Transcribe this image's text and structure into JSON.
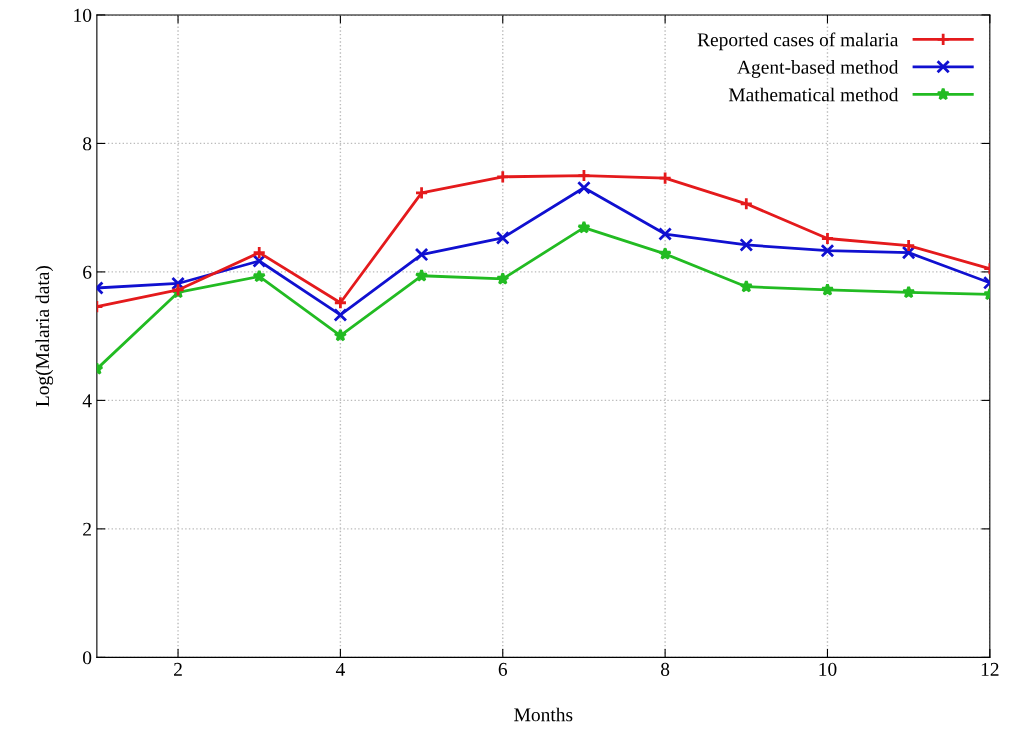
{
  "chart_data": {
    "type": "line",
    "xlabel": "Months",
    "ylabel": "Log(Malaria data)",
    "x": [
      1,
      2,
      3,
      4,
      5,
      6,
      7,
      8,
      9,
      10,
      11,
      12
    ],
    "series": [
      {
        "name": "Reported cases of malaria",
        "color": "#e41a1c",
        "marker": "plus",
        "values": [
          5.46,
          5.72,
          6.3,
          5.52,
          7.23,
          7.48,
          7.5,
          7.46,
          7.06,
          6.52,
          6.41,
          6.05
        ]
      },
      {
        "name": "Agent-based method",
        "color": "#1010d0",
        "marker": "cross",
        "values": [
          5.75,
          5.82,
          6.17,
          5.33,
          6.27,
          6.53,
          7.31,
          6.59,
          6.42,
          6.33,
          6.3,
          5.83
        ]
      },
      {
        "name": "Mathematical method",
        "color": "#22bb22",
        "marker": "star",
        "values": [
          4.49,
          5.68,
          5.93,
          5.01,
          5.94,
          5.89,
          6.69,
          6.28,
          5.77,
          5.72,
          5.68,
          5.65
        ]
      }
    ],
    "xlim": [
      1,
      12
    ],
    "xticks": [
      2,
      4,
      6,
      8,
      10,
      12
    ],
    "ylim": [
      0,
      10
    ],
    "yticks": [
      0,
      2,
      4,
      6,
      8,
      10
    ],
    "grid": true,
    "legend": "top right",
    "line_style": "solid"
  }
}
